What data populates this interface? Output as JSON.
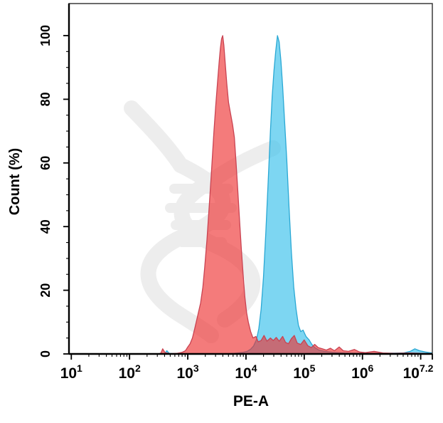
{
  "figure": {
    "background": "#ffffff",
    "frame_color": "#3a3a3a",
    "axis_color": "#000000",
    "watermark": {
      "name": "dna-helix-watermark",
      "color": "#ededed"
    }
  },
  "chart_data": {
    "type": "area",
    "subtype": "flow-cytometry-histogram-overlay",
    "title": "",
    "grid": false,
    "legend_position": "none",
    "x_axis": {
      "label": "PE-A",
      "scale": "log10",
      "min_log": 0.96,
      "max_log": 7.2,
      "major_ticks": [
        {
          "exp": "1",
          "log": 1
        },
        {
          "exp": "2",
          "log": 2
        },
        {
          "exp": "3",
          "log": 3
        },
        {
          "exp": "4",
          "log": 4
        },
        {
          "exp": "5",
          "log": 5
        },
        {
          "exp": "6",
          "log": 6
        },
        {
          "exp": "",
          "log": 7
        },
        {
          "exp": "7.2",
          "log": 7.2
        }
      ],
      "tick_base": "10",
      "minor_tick_decades": [
        1,
        2,
        3,
        4,
        5,
        6
      ]
    },
    "y_axis": {
      "label": "Count  (%)",
      "min": 0,
      "max": 100,
      "major_ticks": [
        0,
        20,
        40,
        60,
        80,
        100
      ],
      "minor_step": 5
    },
    "series": [
      {
        "name": "blue-population",
        "peak_log10": 4.54,
        "peak_value_approx": 35000,
        "peak_percent": 100,
        "fill": "#38C0EB",
        "fill_opacity": 0.65,
        "stroke": "#2AA8D4",
        "points": [
          [
            2.6,
            0
          ],
          [
            2.64,
            1.0
          ],
          [
            2.68,
            0.2
          ],
          [
            2.8,
            0
          ],
          [
            3.6,
            0
          ],
          [
            3.8,
            0.2
          ],
          [
            3.95,
            0.5
          ],
          [
            4.02,
            0.8
          ],
          [
            4.08,
            1.5
          ],
          [
            4.13,
            2.5
          ],
          [
            4.18,
            4.5
          ],
          [
            4.22,
            8
          ],
          [
            4.26,
            14
          ],
          [
            4.3,
            24
          ],
          [
            4.34,
            38
          ],
          [
            4.38,
            54
          ],
          [
            4.42,
            70
          ],
          [
            4.45,
            81
          ],
          [
            4.48,
            89
          ],
          [
            4.51,
            95
          ],
          [
            4.54,
            100
          ],
          [
            4.57,
            98
          ],
          [
            4.6,
            92
          ],
          [
            4.63,
            84
          ],
          [
            4.66,
            74
          ],
          [
            4.7,
            61
          ],
          [
            4.74,
            46
          ],
          [
            4.78,
            32
          ],
          [
            4.82,
            21
          ],
          [
            4.86,
            14
          ],
          [
            4.9,
            9
          ],
          [
            4.94,
            7
          ],
          [
            4.98,
            7.5
          ],
          [
            5.03,
            5.5
          ],
          [
            5.08,
            4.5
          ],
          [
            5.13,
            3
          ],
          [
            5.18,
            2
          ],
          [
            5.25,
            1.2
          ],
          [
            5.35,
            0.8
          ],
          [
            5.5,
            0.5
          ],
          [
            5.7,
            0.3
          ],
          [
            6.0,
            0.2
          ],
          [
            6.4,
            0.2
          ],
          [
            6.7,
            0.3
          ],
          [
            6.82,
            0.8
          ],
          [
            6.9,
            1.6
          ],
          [
            6.98,
            1.0
          ],
          [
            7.08,
            0.6
          ],
          [
            7.15,
            0.4
          ],
          [
            7.2,
            0.3
          ]
        ]
      },
      {
        "name": "red-population",
        "peak_log10": 3.59,
        "peak_value_approx": 3900,
        "peak_percent": 100,
        "fill": "#EE3030",
        "fill_opacity": 0.64,
        "stroke": "#C94352",
        "points": [
          [
            2.5,
            0
          ],
          [
            2.54,
            0.3
          ],
          [
            2.57,
            1.6
          ],
          [
            2.61,
            0.4
          ],
          [
            2.7,
            0.1
          ],
          [
            2.82,
            0.2
          ],
          [
            2.9,
            0.5
          ],
          [
            2.96,
            1.0
          ],
          [
            3.0,
            2.2
          ],
          [
            3.04,
            3.2
          ],
          [
            3.08,
            5
          ],
          [
            3.12,
            8
          ],
          [
            3.17,
            12
          ],
          [
            3.22,
            16
          ],
          [
            3.26,
            21
          ],
          [
            3.29,
            27
          ],
          [
            3.33,
            36
          ],
          [
            3.37,
            47
          ],
          [
            3.41,
            58
          ],
          [
            3.45,
            70
          ],
          [
            3.48,
            78
          ],
          [
            3.51,
            85
          ],
          [
            3.54,
            92
          ],
          [
            3.56,
            96
          ],
          [
            3.58,
            99
          ],
          [
            3.6,
            100
          ],
          [
            3.62,
            97
          ],
          [
            3.64,
            92
          ],
          [
            3.67,
            85
          ],
          [
            3.7,
            79
          ],
          [
            3.73,
            76
          ],
          [
            3.77,
            72
          ],
          [
            3.8,
            68
          ],
          [
            3.83,
            60
          ],
          [
            3.86,
            51
          ],
          [
            3.89,
            42
          ],
          [
            3.92,
            33
          ],
          [
            3.95,
            25
          ],
          [
            3.98,
            18
          ],
          [
            4.01,
            13
          ],
          [
            4.04,
            10
          ],
          [
            4.08,
            7
          ],
          [
            4.12,
            5
          ],
          [
            4.17,
            5.5
          ],
          [
            4.21,
            3.8
          ],
          [
            4.26,
            4.2
          ],
          [
            4.31,
            5.8
          ],
          [
            4.36,
            4
          ],
          [
            4.42,
            5
          ],
          [
            4.47,
            4.2
          ],
          [
            4.52,
            5.2
          ],
          [
            4.57,
            4
          ],
          [
            4.63,
            5.5
          ],
          [
            4.68,
            3.6
          ],
          [
            4.73,
            3.2
          ],
          [
            4.78,
            4.8
          ],
          [
            4.83,
            5.8
          ],
          [
            4.88,
            3.4
          ],
          [
            4.94,
            3
          ],
          [
            5.0,
            4.4
          ],
          [
            5.06,
            2.6
          ],
          [
            5.12,
            2
          ],
          [
            5.18,
            3
          ],
          [
            5.24,
            2
          ],
          [
            5.31,
            1.6
          ],
          [
            5.38,
            1.2
          ],
          [
            5.45,
            1.8
          ],
          [
            5.52,
            1
          ],
          [
            5.6,
            2.2
          ],
          [
            5.67,
            1
          ],
          [
            5.76,
            0.8
          ],
          [
            5.86,
            1.4
          ],
          [
            5.95,
            0.6
          ],
          [
            6.05,
            0.4
          ],
          [
            6.2,
            0.8
          ],
          [
            6.35,
            0.3
          ],
          [
            6.55,
            0.2
          ],
          [
            6.8,
            0.3
          ],
          [
            7.0,
            0.2
          ],
          [
            7.2,
            0.1
          ]
        ]
      }
    ]
  }
}
